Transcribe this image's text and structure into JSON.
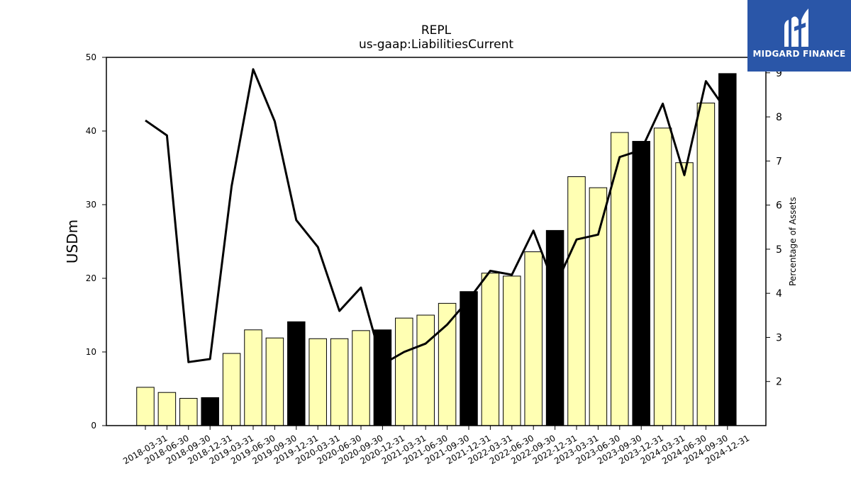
{
  "logo": {
    "text": "MIDGARD FINANCE"
  },
  "chart_data": {
    "type": "bar",
    "title": "REPL",
    "subtitle": "us-gaap:LiabilitiesCurrent",
    "ylabel": "USDm",
    "ylabel_right": "Percentage of Assets",
    "ylim": [
      0,
      50
    ],
    "ylim_right": [
      1.0,
      9.35
    ],
    "yticks": [
      0,
      10,
      20,
      30,
      40,
      50
    ],
    "yticks_right": [
      2,
      3,
      4,
      5,
      6,
      7,
      8,
      9
    ],
    "grid": false,
    "categories": [
      "2018-03-31",
      "2018-06-30",
      "2018-09-30",
      "2018-12-31",
      "2019-03-31",
      "2019-06-30",
      "2019-09-30",
      "2019-12-31",
      "2020-03-31",
      "2020-06-30",
      "2020-09-30",
      "2020-12-31",
      "2021-03-31",
      "2021-06-30",
      "2021-09-30",
      "2021-12-31",
      "2022-03-31",
      "2022-06-30",
      "2022-09-30",
      "2022-12-31",
      "2023-03-31",
      "2023-06-30",
      "2023-09-30",
      "2023-12-31",
      "2024-03-31",
      "2024-06-30",
      "2024-09-30",
      "2024-12-31"
    ],
    "series": [
      {
        "values": [
          5.2,
          4.5,
          3.7,
          3.8,
          9.8,
          13.0,
          11.9,
          14.1,
          11.8,
          11.8,
          12.9,
          13.0,
          14.6,
          15.0,
          16.6,
          18.2,
          20.7,
          20.3,
          23.6,
          26.5,
          33.8,
          32.3,
          39.8,
          38.6,
          40.4,
          35.7,
          43.8,
          47.8
        ]
      },
      {
        "type": "line",
        "axis": "right",
        "values": [
          7.92,
          7.58,
          2.44,
          2.51,
          6.43,
          9.08,
          7.9,
          5.66,
          5.05,
          3.6,
          4.13,
          2.39,
          2.67,
          2.86,
          3.29,
          3.86,
          4.51,
          4.42,
          5.42,
          4.15,
          5.22,
          5.33,
          7.09,
          7.25,
          8.3,
          6.68,
          8.81,
          8.11
        ]
      }
    ],
    "bar_colors": {
      "default": "#ffffb3",
      "year_end": "#000000"
    },
    "line_color": "#000000"
  }
}
